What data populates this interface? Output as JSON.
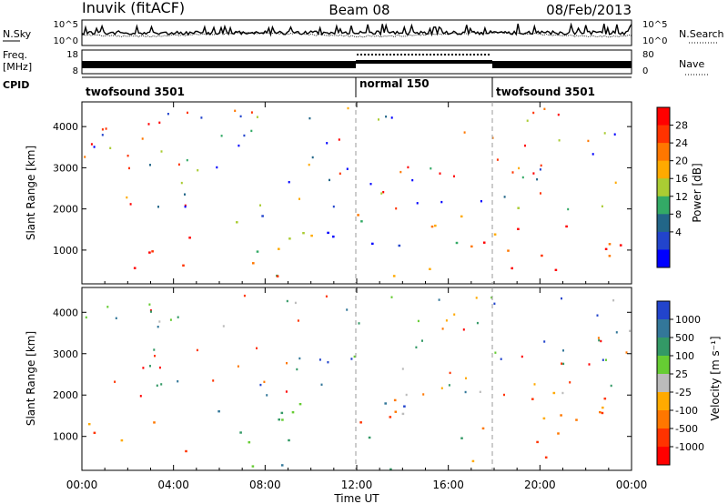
{
  "header": {
    "station": "Inuvik (fitACF)",
    "beam": "Beam 08",
    "date": "08/Feb/2013"
  },
  "noise_panel": {
    "left_label": "N.Sky",
    "right_label": "N.Search",
    "left_ticks": [
      "10^5",
      "10^0"
    ],
    "right_ticks": [
      "10^5",
      "10^0"
    ]
  },
  "freq_panel": {
    "left_label_1": "Freq.",
    "left_label_2": "[MHz]",
    "left_ticks": [
      "18",
      "8"
    ],
    "right_label": "Nave",
    "right_ticks": [
      "80",
      "0"
    ]
  },
  "cpid_panel": {
    "label": "CPID",
    "segments": [
      {
        "name": "twofsound 3501",
        "start_h": 0,
        "end_h": 12
      },
      {
        "name": "normal 150",
        "start_h": 12,
        "end_h": 18
      },
      {
        "name": "twofsound 3501",
        "start_h": 18,
        "end_h": 24
      }
    ]
  },
  "power_panel": {
    "ylabel": "Slant Range [km]",
    "yticks": [
      "4000",
      "3000",
      "2000",
      "1000"
    ],
    "colorbar_label": "Power [dB]",
    "colorbar_ticks": [
      "28",
      "24",
      "20",
      "16",
      "12",
      "8",
      "4"
    ],
    "colors": [
      "#ff0000",
      "#ff3300",
      "#ff7700",
      "#ffaa00",
      "#aacc33",
      "#33aa66",
      "#226688",
      "#2244cc",
      "#0000ff"
    ]
  },
  "velocity_panel": {
    "ylabel": "Slant Range [km]",
    "yticks": [
      "4000",
      "3000",
      "2000",
      "1000"
    ],
    "colorbar_label": "Velocity [m s⁻¹]",
    "colorbar_ticks": [
      "1000",
      "500",
      "100",
      "25",
      "-25",
      "-100",
      "-500",
      "-1000"
    ],
    "colors": [
      "#2244cc",
      "#337799",
      "#339966",
      "#66cc33",
      "#bbbbbb",
      "#ffaa00",
      "#ff7700",
      "#ff3300",
      "#ff0000"
    ]
  },
  "xaxis": {
    "label": "Time UT",
    "ticks": [
      "00:00",
      "04:00",
      "08:00",
      "12:00",
      "16:00",
      "20:00",
      "00:00"
    ]
  },
  "chart_data": {
    "type": "heatmap",
    "title": "Inuvik (fitACF) Beam 08 08/Feb/2013",
    "xlabel": "Time UT",
    "ylabel": "Slant Range [km]",
    "xlim_hours": [
      0,
      24
    ],
    "ylim_km": [
      180,
      4600
    ],
    "power_db_range": [
      0,
      30
    ],
    "velocity_range": [
      -1000,
      1000
    ],
    "power_regions": [
      {
        "t0": 0.0,
        "t1": 4.5,
        "r0": 500,
        "r1": 1300,
        "level": "high"
      },
      {
        "t0": 4.5,
        "t1": 10.5,
        "r0": 300,
        "r1": 2000,
        "level": "mixed"
      },
      {
        "t0": 10.0,
        "t1": 12.0,
        "r0": 1300,
        "r1": 2000,
        "level": "low"
      },
      {
        "t0": 12.0,
        "t1": 17.5,
        "r0": 200,
        "r1": 2000,
        "level": "patchy"
      },
      {
        "t0": 17.0,
        "t1": 24.0,
        "r0": 400,
        "r1": 2100,
        "level": "high"
      }
    ],
    "velocity_regions": [
      {
        "t0": 0.0,
        "t1": 4.5,
        "r0": 500,
        "r1": 1500,
        "level": "negative"
      },
      {
        "t0": 4.5,
        "t1": 10.5,
        "r0": 300,
        "r1": 2000,
        "level": "positive"
      },
      {
        "t0": 12.0,
        "t1": 17.5,
        "r0": 200,
        "r1": 2000,
        "level": "mixed"
      },
      {
        "t0": 17.0,
        "t1": 24.0,
        "r0": 400,
        "r1": 2100,
        "level": "negative"
      }
    ]
  }
}
